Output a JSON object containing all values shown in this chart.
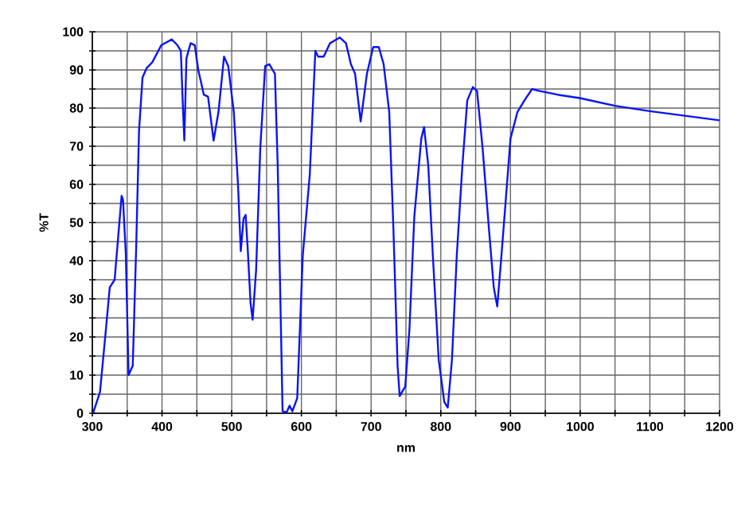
{
  "chart_data": {
    "type": "line",
    "xlabel": "nm",
    "ylabel": "%T",
    "color": "#0a14f5",
    "grid": true,
    "marker": "none",
    "line_style": "solid",
    "xlim": [
      300,
      1200
    ],
    "ylim": [
      0,
      100
    ],
    "xticks": [
      300,
      {
        "value": 350,
        "label": null
      },
      400,
      {
        "value": 450,
        "label": null
      },
      500,
      {
        "value": 550,
        "label": null
      },
      600,
      {
        "value": 650,
        "label": null
      },
      700,
      {
        "value": 750,
        "label": null
      },
      800,
      {
        "value": 850,
        "label": null
      },
      900,
      {
        "value": 950,
        "label": null
      },
      1000,
      {
        "value": 1050,
        "label": null
      },
      1100,
      {
        "value": 1150,
        "label": null
      },
      1200
    ],
    "yticks": [
      0,
      {
        "value": 5,
        "label": null
      },
      10,
      {
        "value": 15,
        "label": null
      },
      20,
      {
        "value": 25,
        "label": null
      },
      30,
      {
        "value": 35,
        "label": null
      },
      40,
      {
        "value": 45,
        "label": null
      },
      50,
      {
        "value": 55,
        "label": null
      },
      60,
      {
        "value": 65,
        "label": null
      },
      70,
      {
        "value": 75,
        "label": null
      },
      80,
      {
        "value": 85,
        "label": null
      },
      90,
      {
        "value": 95,
        "label": null
      },
      100
    ],
    "x": [
      301,
      311,
      319,
      325,
      332,
      337,
      342,
      344,
      348,
      352,
      358,
      363,
      367,
      372,
      378,
      386,
      399,
      414,
      422,
      427,
      430,
      432,
      435,
      441,
      447,
      452,
      460,
      466,
      474,
      481,
      489,
      495,
      503,
      509,
      513,
      517,
      520,
      523,
      527,
      530,
      535,
      541,
      548,
      554,
      562,
      566,
      570,
      573,
      579,
      583,
      587,
      594,
      602,
      612,
      620,
      624,
      632,
      641,
      655,
      664,
      671,
      677,
      685,
      688,
      694,
      703,
      711,
      718,
      726,
      732,
      738,
      741,
      749,
      755,
      762,
      772,
      776,
      782,
      789,
      797,
      805,
      810,
      816,
      823,
      831,
      838,
      846,
      852,
      860,
      869,
      876,
      881,
      886,
      892,
      900,
      910,
      920,
      931,
      941,
      968,
      1000,
      1050,
      1100,
      1150,
      1200
    ],
    "values": [
      0,
      5.6,
      21,
      33,
      35,
      46,
      57,
      56,
      42,
      10,
      12.5,
      44,
      74,
      88,
      90.5,
      92,
      96.5,
      98,
      96.5,
      95,
      80,
      71.5,
      93,
      97,
      96.5,
      90,
      83.5,
      83,
      71.5,
      79,
      93.5,
      91,
      79,
      60,
      42.5,
      51,
      52,
      43,
      29,
      24.5,
      37.5,
      69.5,
      91,
      91.5,
      89,
      65,
      28,
      0.5,
      0.3,
      2,
      0.5,
      4,
      41.5,
      62.5,
      95,
      93.5,
      93.5,
      97,
      98.5,
      97,
      91.5,
      89,
      76.5,
      80.5,
      89,
      96,
      96,
      91.5,
      79,
      48.5,
      12.5,
      4.5,
      7,
      22,
      51.5,
      72,
      75,
      65,
      40,
      14,
      3,
      1.5,
      14,
      41.5,
      65,
      82,
      85.5,
      84.5,
      69.5,
      48.5,
      33,
      28,
      39,
      53,
      72,
      79,
      82,
      85,
      84.5,
      83.5,
      82.6,
      80.6,
      79.2,
      78,
      76.8
    ]
  }
}
